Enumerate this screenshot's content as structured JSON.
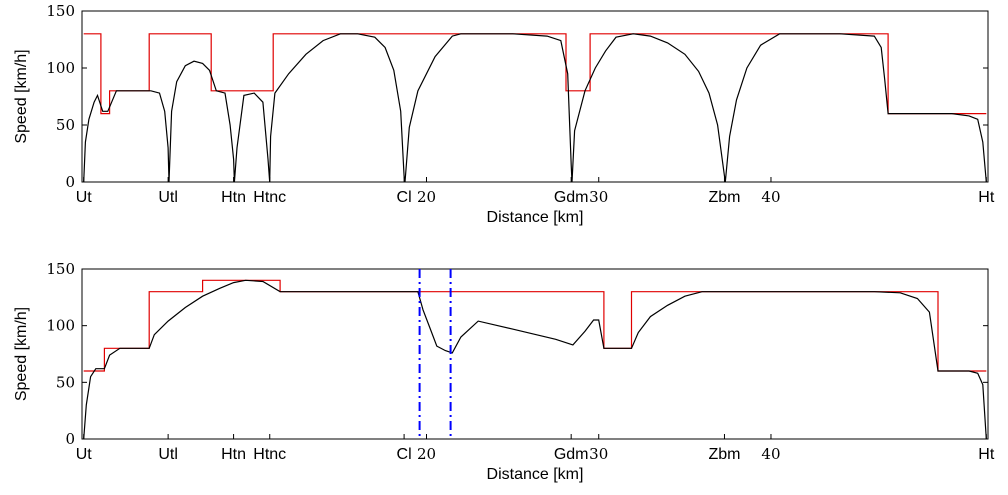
{
  "chart_data": [
    {
      "type": "line",
      "xlabel": "Distance [km]",
      "ylabel": "Speed [km/h]",
      "xlim": [
        0,
        52.6
      ],
      "ylim": [
        0,
        150
      ],
      "yticks": [
        0,
        50,
        100,
        150
      ],
      "xticks_numeric": [
        20,
        30,
        40
      ],
      "xticks_stations": [
        {
          "x": 0.1,
          "label": "Ut"
        },
        {
          "x": 5.0,
          "label": "Utl"
        },
        {
          "x": 8.8,
          "label": "Htn"
        },
        {
          "x": 10.9,
          "label": "Htnc"
        },
        {
          "x": 18.7,
          "label": "Cl"
        },
        {
          "x": 28.4,
          "label": "Gdm"
        },
        {
          "x": 37.3,
          "label": "Zbm"
        },
        {
          "x": 52.5,
          "label": "Ht"
        }
      ],
      "series": [
        {
          "color": "#e00000",
          "style": "step",
          "x": [
            0.1,
            1.1,
            1.1,
            1.6,
            1.6,
            3.9,
            3.9,
            7.5,
            7.5,
            11.1,
            11.1,
            28.1,
            28.1,
            29.5,
            29.5,
            46.8,
            46.8,
            52.5
          ],
          "y": [
            130,
            130,
            60,
            60,
            80,
            80,
            130,
            130,
            80,
            80,
            130,
            130,
            80,
            80,
            130,
            130,
            60,
            60
          ]
        },
        {
          "color": "#000000",
          "style": "solid",
          "x": [
            0.1,
            0.2,
            0.4,
            0.7,
            0.9,
            1.2,
            1.5,
            2.0,
            3.0,
            4.0,
            4.5,
            4.8,
            5.0,
            5.05,
            5.2,
            5.5,
            6.0,
            6.5,
            7.0,
            7.4,
            7.8,
            8.3,
            8.6,
            8.8,
            8.85,
            9.0,
            9.4,
            10.0,
            10.5,
            10.8,
            10.9,
            10.95,
            11.2,
            12.0,
            13.0,
            14.0,
            15.0,
            16.0,
            17.0,
            17.6,
            18.1,
            18.5,
            18.7,
            18.75,
            19.0,
            19.5,
            20.5,
            21.5,
            22.0,
            23.0,
            25.0,
            27.0,
            27.8,
            28.2,
            28.4,
            28.45,
            28.6,
            29.2,
            29.8,
            30.4,
            31.0,
            32.0,
            33.0,
            34.0,
            35.0,
            35.8,
            36.4,
            36.9,
            37.3,
            37.35,
            37.6,
            38.0,
            38.6,
            39.4,
            40.5,
            42.0,
            44.0,
            46.0,
            46.4,
            46.6,
            46.8,
            47.5,
            49.0,
            50.5,
            51.5,
            52.0,
            52.3,
            52.5
          ],
          "y": [
            0,
            35,
            55,
            70,
            76,
            62,
            62,
            80,
            80,
            80,
            78,
            62,
            30,
            0,
            62,
            88,
            102,
            106,
            104,
            98,
            80,
            78,
            50,
            20,
            0,
            30,
            76,
            78,
            70,
            20,
            0,
            40,
            78,
            95,
            112,
            124,
            130,
            130,
            127,
            118,
            98,
            62,
            5,
            0,
            48,
            80,
            110,
            128,
            130,
            130,
            130,
            128,
            124,
            95,
            15,
            0,
            45,
            80,
            100,
            115,
            127,
            130,
            128,
            122,
            112,
            97,
            78,
            50,
            5,
            0,
            40,
            72,
            100,
            120,
            130,
            130,
            130,
            128,
            118,
            90,
            60,
            60,
            60,
            60,
            58,
            55,
            35,
            0
          ]
        }
      ]
    },
    {
      "type": "line",
      "xlabel": "Distance [km]",
      "ylabel": "Speed [km/h]",
      "xlim": [
        0,
        52.6
      ],
      "ylim": [
        0,
        150
      ],
      "yticks": [
        0,
        50,
        100,
        150
      ],
      "xticks_numeric": [
        20,
        30,
        40
      ],
      "xticks_stations": [
        {
          "x": 0.1,
          "label": "Ut"
        },
        {
          "x": 5.0,
          "label": "Utl"
        },
        {
          "x": 8.8,
          "label": "Htn"
        },
        {
          "x": 10.9,
          "label": "Htnc"
        },
        {
          "x": 18.7,
          "label": "Cl"
        },
        {
          "x": 28.4,
          "label": "Gdm"
        },
        {
          "x": 37.3,
          "label": "Zbm"
        },
        {
          "x": 52.5,
          "label": "Ht"
        }
      ],
      "vertical_markers": [
        19.6,
        21.4
      ],
      "series": [
        {
          "color": "#e00000",
          "style": "step",
          "x": [
            0.1,
            0.2,
            0.2,
            1.3,
            1.3,
            3.9,
            3.9,
            7.0,
            7.0,
            11.5,
            11.5,
            30.3,
            30.3,
            31.9,
            31.9,
            49.7,
            49.7,
            52.5
          ],
          "y": [
            60,
            60,
            60,
            60,
            80,
            80,
            130,
            130,
            140,
            140,
            130,
            130,
            80,
            80,
            130,
            130,
            60,
            60
          ]
        },
        {
          "color": "#000000",
          "style": "solid",
          "x": [
            0.1,
            0.25,
            0.5,
            0.8,
            1.3,
            1.6,
            2.2,
            3.9,
            4.2,
            5.0,
            6.0,
            7.0,
            8.0,
            8.8,
            9.5,
            10.5,
            11.5,
            13.0,
            16.0,
            19.0,
            19.5,
            19.8,
            20.2,
            20.6,
            21.1,
            21.5,
            22.0,
            23.0,
            25.0,
            27.5,
            28.5,
            29.2,
            29.7,
            30.0,
            30.3,
            31.0,
            31.9,
            32.3,
            33.0,
            34.0,
            35.0,
            36.0,
            38.0,
            42.0,
            46.0,
            47.5,
            48.5,
            49.2,
            49.7,
            50.5,
            51.5,
            52.0,
            52.3,
            52.5
          ],
          "y": [
            0,
            30,
            55,
            62,
            62,
            74,
            80,
            80,
            92,
            104,
            116,
            126,
            133,
            138,
            140,
            139,
            130,
            130,
            130,
            130,
            130,
            114,
            98,
            82,
            78,
            76,
            90,
            104,
            97,
            88,
            83,
            95,
            105,
            105,
            80,
            80,
            80,
            94,
            108,
            118,
            126,
            130,
            130,
            130,
            130,
            129,
            124,
            112,
            60,
            60,
            60,
            58,
            48,
            0
          ]
        }
      ]
    }
  ]
}
